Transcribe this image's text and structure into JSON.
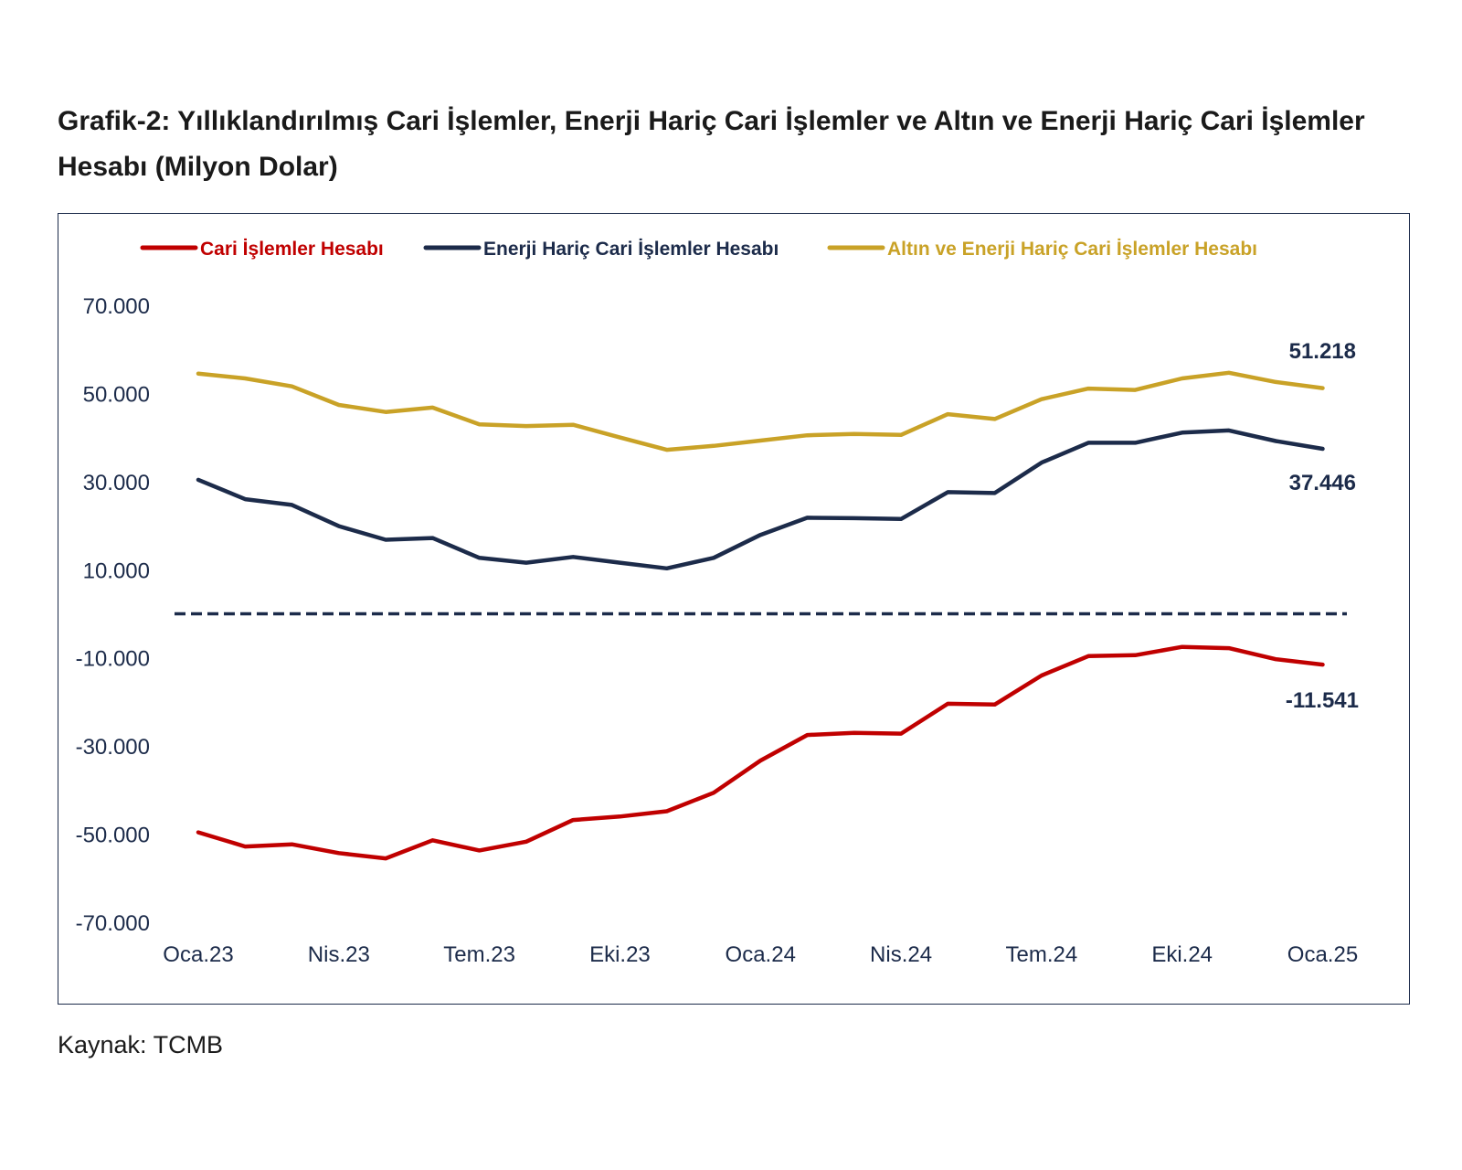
{
  "chart_data": {
    "type": "line",
    "title": "Grafik-2: Yıllıklandırılmış Cari İşlemler, Enerji Hariç Cari İşlemler ve Altın ve Enerji Hariç Cari İşlemler Hesabı (Milyon Dolar)",
    "xlabel": "",
    "ylabel": "",
    "x": [
      "Oca.23",
      "Şub.23",
      "Mar.23",
      "Nis.23",
      "May.23",
      "Haz.23",
      "Tem.23",
      "Ağu.23",
      "Eyl.23",
      "Eki.23",
      "Kas.23",
      "Ara.23",
      "Oca.24",
      "Şub.24",
      "Mar.24",
      "Nis.24",
      "May.24",
      "Haz.24",
      "Tem.24",
      "Ağu.24",
      "Eyl.24",
      "Eki.24",
      "Kas.24",
      "Ara.24",
      "Oca.25"
    ],
    "x_tick_labels": [
      "Oca.23",
      "Nis.23",
      "Tem.23",
      "Eki.23",
      "Oca.24",
      "Nis.24",
      "Tem.24",
      "Eki.24",
      "Oca.25"
    ],
    "y_tick_labels": [
      "70.000",
      "50.000",
      "30.000",
      "10.000",
      "-10.000",
      "-30.000",
      "-50.000",
      "-70.000"
    ],
    "y_ticks": [
      70000,
      50000,
      30000,
      10000,
      -10000,
      -30000,
      -50000,
      -70000
    ],
    "ylim": [
      -70000,
      70000
    ],
    "zero_line": "dashed",
    "grid": false,
    "legend_position": "top",
    "series": [
      {
        "name": "Cari İşlemler Hesabı",
        "color": "#c00000",
        "values": [
          -49600,
          -52800,
          -52300,
          -54300,
          -55500,
          -51400,
          -53700,
          -51700,
          -46800,
          -46000,
          -44800,
          -40600,
          -33300,
          -27500,
          -27000,
          -27200,
          -20400,
          -20600,
          -14000,
          -9600,
          -9400,
          -7500,
          -7800,
          -10300,
          -11541
        ]
      },
      {
        "name": "Enerji Hariç Cari İşlemler Hesabı",
        "color": "#1c2b4a",
        "values": [
          30400,
          26000,
          24700,
          19900,
          16800,
          17200,
          12700,
          11600,
          12900,
          11600,
          10300,
          12700,
          17900,
          21800,
          21700,
          21500,
          27600,
          27400,
          34300,
          38800,
          38800,
          41100,
          41600,
          39200,
          37446
        ]
      },
      {
        "name": "Altın ve Enerji Hariç Cari İşlemler Hesabı",
        "color": "#c9a227",
        "values": [
          54500,
          53400,
          51600,
          47400,
          45800,
          46800,
          43000,
          42600,
          42900,
          40000,
          37200,
          38100,
          39300,
          40500,
          40800,
          40600,
          45300,
          44200,
          48700,
          51100,
          50800,
          53400,
          54700,
          52600,
          51218
        ]
      }
    ],
    "end_labels": [
      "51.218",
      "37.446",
      "-11.541"
    ]
  },
  "source": "Kaynak: TCMB",
  "colors": {
    "axis_text": "#1c2b4a",
    "frame": "#1c2b4a"
  }
}
